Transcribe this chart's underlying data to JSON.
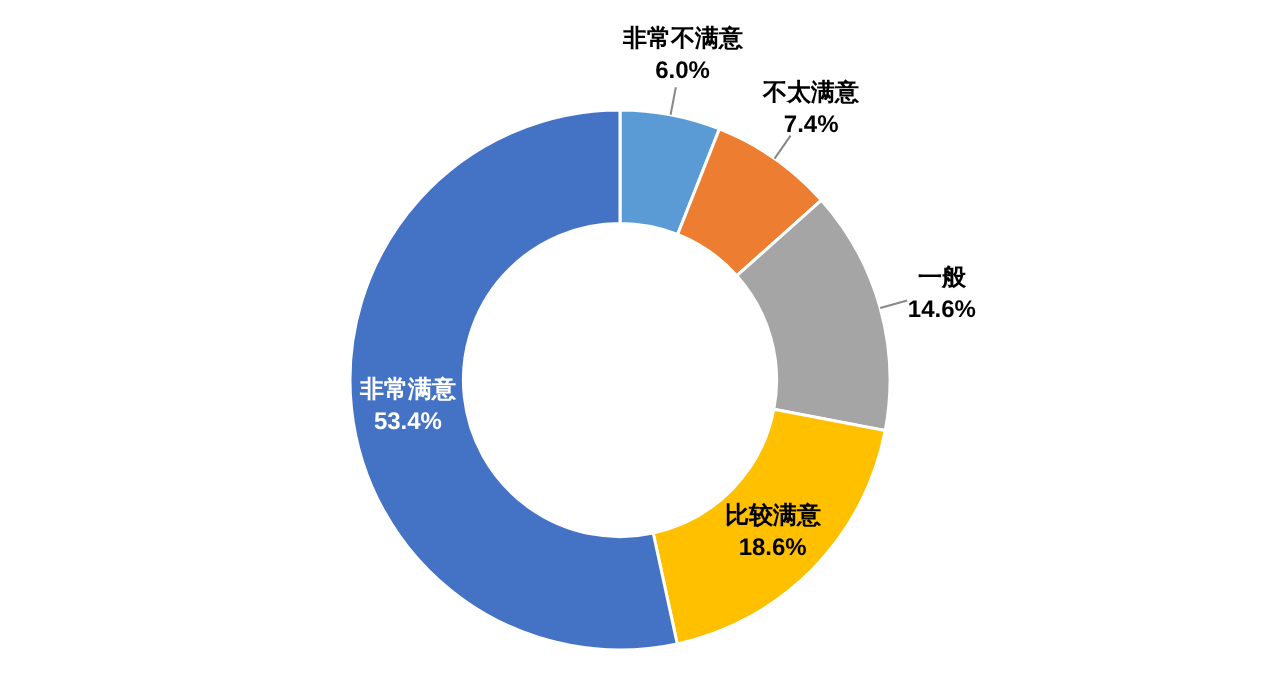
{
  "chart_data": {
    "type": "donut",
    "categories": [
      "非常不满意",
      "不太满意",
      "一般",
      "比较满意",
      "非常满意"
    ],
    "values": [
      6.0,
      7.4,
      14.6,
      18.6,
      53.4
    ],
    "value_labels": [
      "6.0%",
      "7.4%",
      "14.6%",
      "18.6%",
      "53.4%"
    ],
    "colors": [
      "#5b9bd5",
      "#ed7d31",
      "#a5a5a5",
      "#ffc000",
      "#4472c4"
    ],
    "legend": false
  }
}
